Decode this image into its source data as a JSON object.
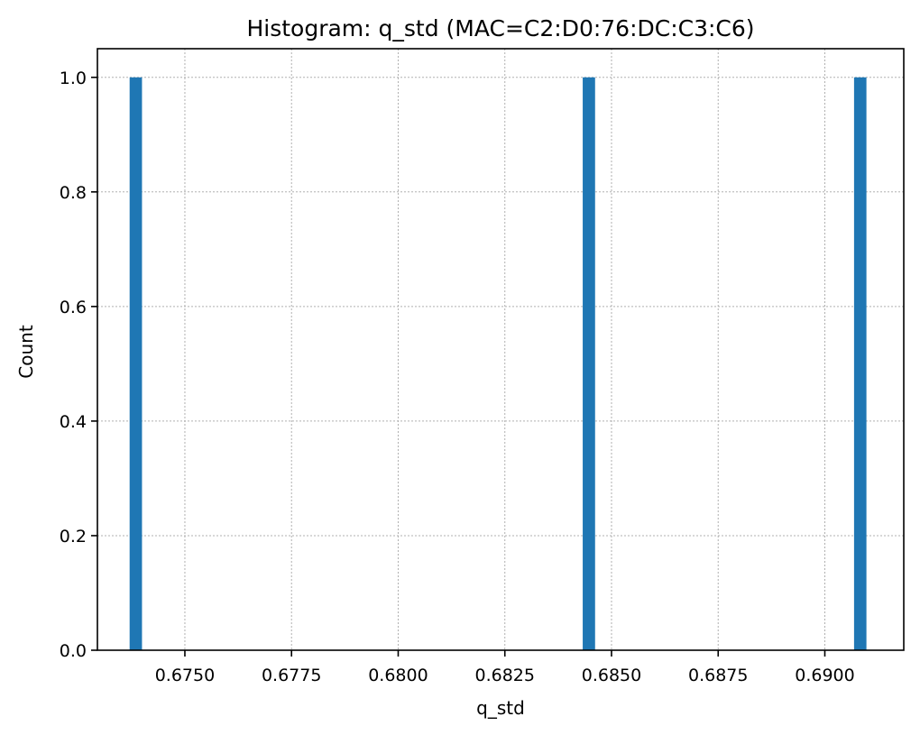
{
  "chart_data": {
    "type": "bar",
    "title": "Histogram: q_std (MAC=C2:D0:76:DC:C3:C6)",
    "xlabel": "q_std",
    "ylabel": "Count",
    "xlim": [
      0.67295,
      0.69185
    ],
    "ylim": [
      0,
      1.05
    ],
    "bar_color": "#1f77b4",
    "bar_width": 0.00029,
    "bars": [
      {
        "x": 0.67385,
        "count": 1
      },
      {
        "x": 0.68447,
        "count": 1
      },
      {
        "x": 0.69083,
        "count": 1
      }
    ],
    "x_ticks": [
      {
        "value": 0.675,
        "label": "0.6750"
      },
      {
        "value": 0.6775,
        "label": "0.6775"
      },
      {
        "value": 0.68,
        "label": "0.6800"
      },
      {
        "value": 0.6825,
        "label": "0.6825"
      },
      {
        "value": 0.685,
        "label": "0.6850"
      },
      {
        "value": 0.6875,
        "label": "0.6875"
      },
      {
        "value": 0.69,
        "label": "0.6900"
      }
    ],
    "y_ticks": [
      {
        "value": 0.0,
        "label": "0.0"
      },
      {
        "value": 0.2,
        "label": "0.2"
      },
      {
        "value": 0.4,
        "label": "0.4"
      },
      {
        "value": 0.6,
        "label": "0.6"
      },
      {
        "value": 0.8,
        "label": "0.8"
      },
      {
        "value": 1.0,
        "label": "1.0"
      }
    ],
    "grid": true
  }
}
